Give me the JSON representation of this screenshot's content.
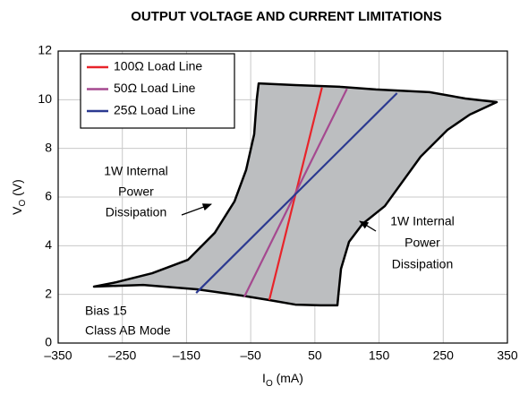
{
  "chart_data": {
    "type": "line",
    "title": "OUTPUT VOLTAGE AND CURRENT LIMITATIONS",
    "xlabel": [
      "I",
      "O",
      " (mA)"
    ],
    "ylabel": [
      "V",
      "O",
      " (V)"
    ],
    "xlim": [
      -350,
      350
    ],
    "xticks": [
      {
        "value": -350,
        "label": "–350"
      },
      {
        "value": -250,
        "label": "–250"
      },
      {
        "value": -150,
        "label": "–150"
      },
      {
        "value": -50,
        "label": "–50"
      },
      50,
      150,
      250,
      350
    ],
    "ylim": [
      0,
      12
    ],
    "yticks": [
      0,
      2,
      4,
      6,
      8,
      10,
      12
    ],
    "grid": true,
    "legend": "upper left",
    "region": {
      "color": "#bcbec0",
      "x": [
        -294.2,
        -217.5,
        -133.9,
        -64.1,
        -22.3,
        19.5,
        58.6,
        85.1,
        86.5,
        90.7,
        103.2,
        124.1,
        159.0,
        214.8,
        256.6,
        291.5,
        333.3,
        284.5,
        228.7,
        145.0,
        89.3,
        19.5,
        -37.6,
        -40.4,
        -44.6,
        -57.2,
        -75.3,
        -106.0,
        -147.8,
        -203.6,
        -259.4
      ],
      "y": [
        2.32,
        2.39,
        2.21,
        1.95,
        1.77,
        1.58,
        1.55,
        1.55,
        1.95,
        3.05,
        4.16,
        4.89,
        5.63,
        7.66,
        8.76,
        9.39,
        9.9,
        10.05,
        10.31,
        10.42,
        10.53,
        10.6,
        10.67,
        10.05,
        8.58,
        7.11,
        5.82,
        4.53,
        3.42,
        2.87,
        2.5
      ]
    },
    "series": [
      {
        "name": "100Ω Load Line",
        "color": "#e8242a",
        "x": [
          -21,
          61
        ],
        "values": [
          1.77,
          10.5
        ]
      },
      {
        "name": "50Ω Load Line",
        "color": "#a5498f",
        "x": [
          -60,
          100
        ],
        "values": [
          1.9,
          10.45
        ]
      },
      {
        "name": "25Ω Load Line",
        "color": "#2b3990",
        "x": [
          -135,
          178
        ],
        "values": [
          2.06,
          10.27
        ]
      }
    ],
    "annotations": [
      {
        "lines": [
          "1W Internal",
          "Power",
          "Dissipation"
        ]
      },
      {
        "lines": [
          "1W Internal",
          "Power",
          "Dissipation"
        ]
      },
      {
        "lines": [
          "Bias 15",
          "Class AB Mode"
        ]
      }
    ]
  }
}
